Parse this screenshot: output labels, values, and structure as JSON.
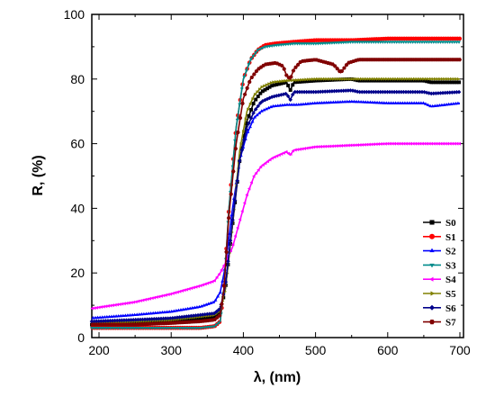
{
  "chart_data": {
    "type": "line",
    "title": "",
    "xlabel": "λ, (nm)",
    "ylabel": "R, (%)",
    "xlim": [
      190,
      705
    ],
    "ylim": [
      0,
      100
    ],
    "xticks": [
      200,
      300,
      400,
      500,
      600,
      700
    ],
    "yticks": [
      0,
      20,
      40,
      60,
      80,
      100
    ],
    "grid": false,
    "legend_position": "bottom-right",
    "series": [
      {
        "name": "S0",
        "color": "#000000",
        "marker": "square",
        "x": [
          190,
          250,
          300,
          340,
          360,
          368,
          375,
          385,
          395,
          405,
          415,
          425,
          440,
          460,
          465,
          470,
          500,
          550,
          560,
          600,
          650,
          660,
          700
        ],
        "y": [
          4,
          4.5,
          5,
          6,
          6.5,
          8,
          15,
          35,
          55,
          67,
          73,
          76,
          78,
          79,
          76.5,
          79,
          79.5,
          80,
          79.5,
          79.5,
          79.5,
          79,
          79
        ]
      },
      {
        "name": "S1",
        "color": "#ff0000",
        "marker": "circle",
        "x": [
          190,
          250,
          300,
          340,
          360,
          368,
          373,
          380,
          390,
          400,
          410,
          420,
          430,
          445,
          470,
          500,
          550,
          600,
          650,
          700
        ],
        "y": [
          3,
          3,
          3,
          3,
          3.5,
          5,
          15,
          40,
          65,
          80,
          86,
          89,
          90.5,
          91,
          91.5,
          92,
          92,
          92.5,
          92.5,
          92.5
        ]
      },
      {
        "name": "S2",
        "color": "#0000ff",
        "marker": "triangle-up",
        "x": [
          190,
          250,
          300,
          340,
          360,
          368,
          375,
          385,
          395,
          405,
          415,
          425,
          440,
          460,
          475,
          500,
          550,
          600,
          650,
          660,
          700
        ],
        "y": [
          6,
          7,
          8,
          9.5,
          11,
          14,
          22,
          40,
          55,
          63,
          68,
          70,
          71.5,
          72,
          72,
          72.5,
          73,
          72.5,
          72.5,
          71.5,
          72.5
        ]
      },
      {
        "name": "S3",
        "color": "#008b8b",
        "marker": "triangle-down",
        "x": [
          190,
          250,
          300,
          340,
          360,
          368,
          373,
          380,
          390,
          400,
          410,
          420,
          430,
          445,
          470,
          500,
          550,
          600,
          650,
          700
        ],
        "y": [
          3,
          3,
          3,
          3,
          3.5,
          5,
          15,
          40,
          65,
          80,
          86,
          89,
          90,
          90.5,
          91,
          91,
          91.5,
          91.5,
          91.5,
          91.5
        ]
      },
      {
        "name": "S4",
        "color": "#ff00ff",
        "marker": "triangle-left",
        "x": [
          190,
          250,
          300,
          340,
          360,
          368,
          375,
          385,
          395,
          405,
          415,
          425,
          440,
          460,
          465,
          470,
          500,
          550,
          600,
          650,
          700
        ],
        "y": [
          9,
          11,
          13.5,
          16,
          17.5,
          20,
          23,
          28,
          36,
          44,
          50,
          53,
          55.5,
          57.5,
          56.5,
          58,
          59,
          59.5,
          60,
          60,
          60
        ]
      },
      {
        "name": "S5",
        "color": "#808000",
        "marker": "triangle-right",
        "x": [
          190,
          250,
          300,
          340,
          360,
          368,
          375,
          385,
          395,
          405,
          415,
          425,
          440,
          460,
          500,
          550,
          600,
          650,
          700
        ],
        "y": [
          4.5,
          5,
          5.5,
          6.5,
          7,
          8.5,
          15,
          35,
          58,
          70,
          75,
          77.5,
          79,
          79.5,
          80,
          80,
          80,
          80,
          80
        ]
      },
      {
        "name": "S6",
        "color": "#00008b",
        "marker": "diamond",
        "x": [
          190,
          250,
          300,
          340,
          360,
          368,
          375,
          385,
          395,
          405,
          415,
          425,
          440,
          460,
          465,
          470,
          500,
          550,
          560,
          600,
          650,
          660,
          700
        ],
        "y": [
          5,
          5.5,
          6,
          7,
          7.5,
          9,
          16,
          36,
          55,
          65,
          70,
          73,
          74.5,
          75.5,
          73.5,
          76,
          76,
          76.5,
          76,
          76,
          76,
          75.5,
          76
        ]
      },
      {
        "name": "S7",
        "color": "#800000",
        "marker": "hexagon",
        "x": [
          190,
          250,
          300,
          340,
          360,
          368,
          373,
          380,
          390,
          400,
          410,
          420,
          430,
          445,
          455,
          460,
          465,
          470,
          480,
          500,
          525,
          535,
          545,
          560,
          600,
          650,
          700
        ],
        "y": [
          4,
          4,
          4.5,
          5,
          5.5,
          7,
          15,
          38,
          60,
          74,
          80,
          83,
          84.5,
          85,
          84,
          81,
          80,
          83,
          85.5,
          86,
          84.5,
          82,
          85,
          86,
          86,
          86,
          86
        ]
      }
    ]
  }
}
